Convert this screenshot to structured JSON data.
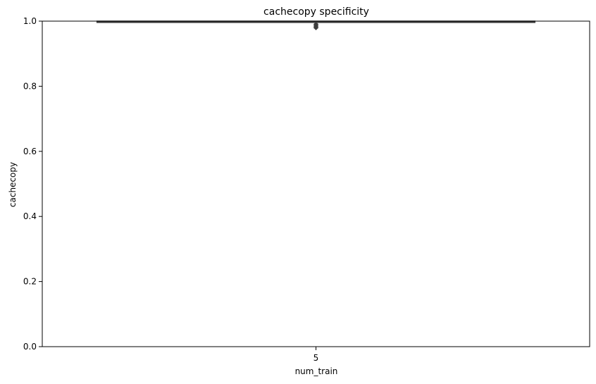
{
  "chart_data": {
    "type": "box",
    "title": "cachecopy specificity",
    "xlabel": "num_train",
    "ylabel": "cachecopy",
    "categories": [
      "5"
    ],
    "ylim": [
      0.0,
      1.0
    ],
    "yticks": [
      "0.0",
      "0.2",
      "0.4",
      "0.6",
      "0.8",
      "1.0"
    ],
    "grid": false,
    "boxes": [
      {
        "category": "5",
        "q1": 0.996,
        "median": 0.998,
        "q3": 1.0,
        "whisker_low": 0.996,
        "whisker_high": 1.0,
        "outliers": [
          0.99,
          0.985,
          0.98
        ]
      }
    ],
    "colors": {
      "box_edge": "#3d3d3d",
      "outlier": "#3d3d3d",
      "axes": "#000000"
    }
  }
}
